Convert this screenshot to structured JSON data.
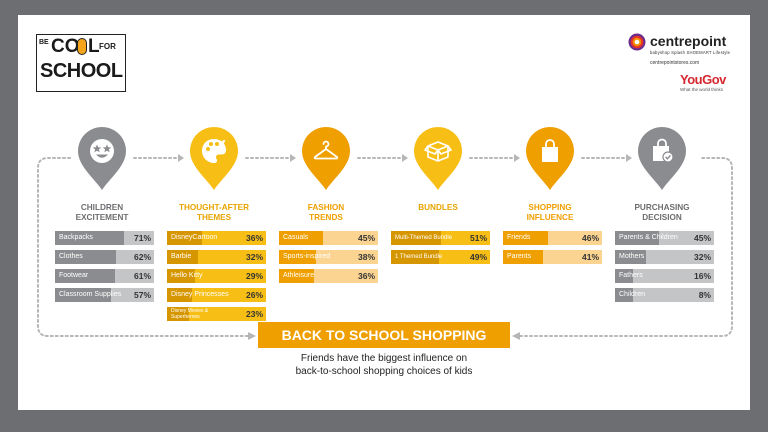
{
  "logo": {
    "line1_a": "BE",
    "line1_b": "CO",
    "line1_c": "L",
    "line1_d": "FOR",
    "line2": "SCHOOL"
  },
  "brand": {
    "name": "centrepoint",
    "sub_brands": "babyshop  Splash  SHOEMART  Lifestyle",
    "url": "centrepointstores.com",
    "yougov": "YouGov",
    "yougov_tagline": "What the world thinks"
  },
  "colors": {
    "orange": "#ef9f00",
    "orange_light": "#fbd492",
    "yellow": "#f7be16",
    "yellow_light": "#fde7a4",
    "gray": "#8b8c8f",
    "gray_light": "#c4c5c7"
  },
  "categories": [
    {
      "title": [
        "CHILDREN",
        "EXCITEMENT"
      ],
      "icon": "smiley-star-eyes-icon",
      "pin": "gray",
      "items": [
        {
          "label": "Backpacks",
          "value": 71,
          "pct": "71%"
        },
        {
          "label": "Clothes",
          "value": 62,
          "pct": "62%"
        },
        {
          "label": "Footwear",
          "value": 61,
          "pct": "61%"
        },
        {
          "label": "Classroom Supplies",
          "value": 57,
          "pct": "57%"
        }
      ]
    },
    {
      "title": [
        "THOUGHT-AFTER",
        "THEMES"
      ],
      "icon": "palette-icon",
      "pin": "yellow",
      "items": [
        {
          "label": "DisneyCartoon",
          "value": 36,
          "pct": "36%"
        },
        {
          "label": "Barbie",
          "value": 32,
          "pct": "32%"
        },
        {
          "label": "Hello Kitty",
          "value": 29,
          "pct": "29%"
        },
        {
          "label": "Disney Princesses",
          "value": 26,
          "pct": "26%"
        },
        {
          "label": "Disney Movies & Superheroes",
          "value": 23,
          "pct": "23%"
        }
      ]
    },
    {
      "title": [
        "FASHION",
        "TRENDS"
      ],
      "icon": "hanger-icon",
      "pin": "orange",
      "items": [
        {
          "label": "Casuals",
          "value": 45,
          "pct": "45%"
        },
        {
          "label": "Sports-inspired",
          "value": 38,
          "pct": "38%"
        },
        {
          "label": "Athleisure",
          "value": 36,
          "pct": "36%"
        }
      ]
    },
    {
      "title": [
        "BUNDLES",
        ""
      ],
      "icon": "box-bundle-icon",
      "pin": "yellow",
      "items": [
        {
          "label": "Multi-Themed Bundle",
          "value": 51,
          "pct": "51%"
        },
        {
          "label": "1 Themed Bundle",
          "value": 49,
          "pct": "49%"
        }
      ]
    },
    {
      "title": [
        "SHOPPING",
        "INFLUENCE"
      ],
      "icon": "shopping-bag-icon",
      "pin": "orange",
      "items": [
        {
          "label": "Friends",
          "value": 46,
          "pct": "46%"
        },
        {
          "label": "Parents",
          "value": 41,
          "pct": "41%"
        }
      ]
    },
    {
      "title": [
        "PURCHASING",
        "DECISION"
      ],
      "icon": "bag-check-icon",
      "pin": "gray",
      "items": [
        {
          "label": "Parents & Children",
          "value": 45,
          "pct": "45%"
        },
        {
          "label": "Mothers",
          "value": 32,
          "pct": "32%"
        },
        {
          "label": "Fathers",
          "value": 16,
          "pct": "16%"
        },
        {
          "label": "Children",
          "value": 8,
          "pct": "8%"
        }
      ]
    }
  ],
  "banner": "BACK TO SCHOOL SHOPPING",
  "tagline": [
    "Friends have the biggest influence on",
    "back-to-school shopping choices of kids"
  ]
}
